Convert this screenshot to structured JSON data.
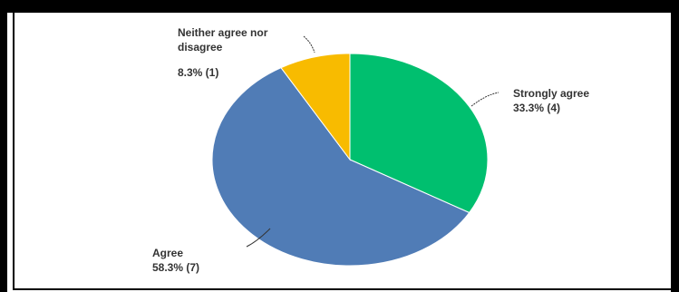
{
  "chart_data": {
    "type": "pie",
    "title": "",
    "colors": [
      "#00bf6f",
      "#507cb6",
      "#f8bb00"
    ],
    "slices": [
      {
        "label": "Strongly agree",
        "percent_text": "33.3% (4)",
        "percent": 33.3,
        "count": 4,
        "color": "#00bf6f"
      },
      {
        "label": "Agree",
        "percent_text": "58.3% (7)",
        "percent": 58.3,
        "count": 7,
        "color": "#507cb6"
      },
      {
        "label": "Neither agree nor disagree",
        "label_line1": "Neither agree nor",
        "label_line2": "disagree",
        "percent_text": "8.3% (1)",
        "percent": 8.3,
        "count": 1,
        "color": "#f8bb00"
      }
    ]
  }
}
